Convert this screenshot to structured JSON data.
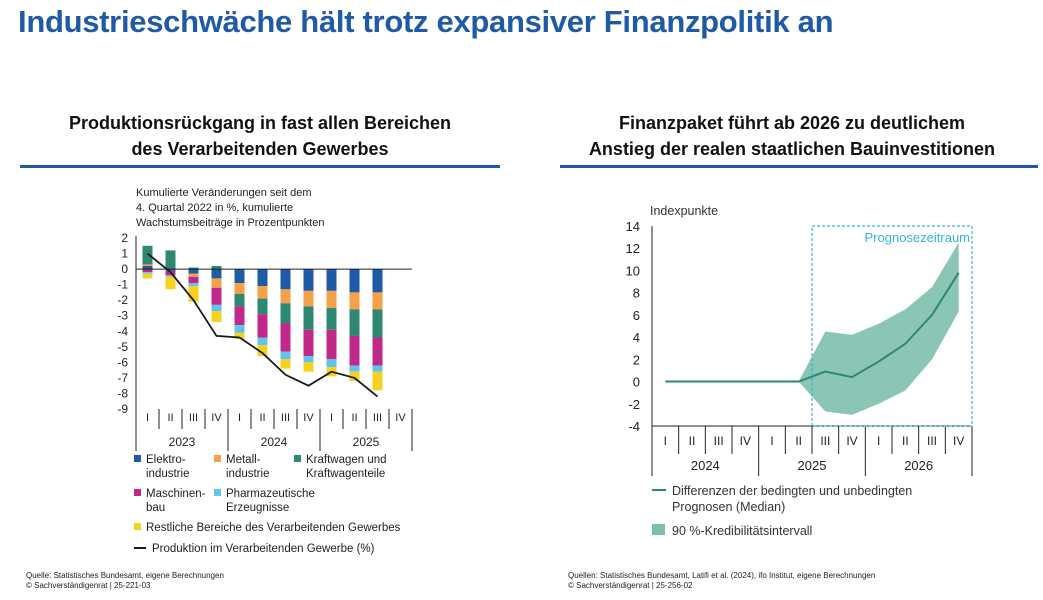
{
  "page": {
    "title": "Industrieschwäche hält trotz expansiver Finanzpolitik an"
  },
  "left": {
    "title_line1": "Produktionsrückgang in fast allen Bereichen",
    "title_line2": "des Verarbeitenden Gewerbes",
    "source_line1": "Quelle: Statistisches Bundesamt, eigene Berechnungen",
    "source_line2": "© Sachverständigenrat | 25-221-03"
  },
  "right": {
    "title_line1": "Finanzpaket führt ab 2026 zu deutlichem",
    "title_line2": "Anstieg der realen staatlichen Bauinvestitionen",
    "source_line1": "Quellen: Statistisches Bundesamt, Latifi et al. (2024), ifo Institut, eigene Berechnungen",
    "source_line2": "© Sachverständigenrat | 25-256-02"
  },
  "chart_data": [
    {
      "type": "bar",
      "stacked": true,
      "subtitle": [
        "Kumulierte Veränderungen seit dem",
        "4. Quartal 2022 in %, kumulierte",
        "Wachstumsbeiträge in Prozentpunkten"
      ],
      "ylim": [
        -9,
        2
      ],
      "yticks": [
        2,
        1,
        0,
        -1,
        -2,
        -3,
        -4,
        -5,
        -6,
        -7,
        -8,
        -9
      ],
      "quarters": [
        "I",
        "II",
        "III",
        "IV",
        "I",
        "II",
        "III",
        "IV",
        "I",
        "II",
        "III",
        "IV"
      ],
      "years": [
        "2023",
        "2024",
        "2025"
      ],
      "series": [
        {
          "name": "Elektro-industrie",
          "label": [
            "Elektro-",
            "industrie"
          ],
          "color": "#1f5aa6",
          "values": [
            0.2,
            -0.1,
            -0.3,
            -0.6,
            -0.9,
            -1.1,
            -1.3,
            -1.4,
            -1.4,
            -1.5,
            -1.5,
            null
          ]
        },
        {
          "name": "Metall-industrie",
          "label": [
            "Metall-",
            "industrie"
          ],
          "color": "#f5a14a",
          "values": [
            0.1,
            0.0,
            -0.2,
            -0.6,
            -0.7,
            -0.8,
            -0.9,
            -1.0,
            -1.1,
            -1.1,
            -1.1,
            null
          ]
        },
        {
          "name": "Kraftwagen und Kraftwagenteile",
          "label": [
            "Kraftwagen und",
            "Kraftwagenteile"
          ],
          "color": "#2e8770",
          "values": [
            1.2,
            1.2,
            0.1,
            0.2,
            -0.8,
            -1.0,
            -1.3,
            -1.5,
            -1.4,
            -1.7,
            -1.8,
            null
          ]
        },
        {
          "name": "Maschinenbau",
          "label": [
            "Maschinen-",
            "bau"
          ],
          "color": "#c0288a",
          "values": [
            -0.2,
            -0.3,
            -0.4,
            -1.1,
            -1.2,
            -1.5,
            -1.8,
            -1.7,
            -1.9,
            -1.9,
            -1.8,
            null
          ]
        },
        {
          "name": "Pharmazeutische Erzeugnisse",
          "label": [
            "Pharmazeutische",
            "Erzeugnisse"
          ],
          "color": "#62c4ee",
          "values": [
            -0.1,
            -0.1,
            -0.2,
            -0.4,
            -0.5,
            -0.5,
            -0.5,
            -0.4,
            -0.5,
            -0.4,
            -0.4,
            null
          ]
        },
        {
          "name": "Restliche Bereiche des Verarbeitenden Gewerbes",
          "label": [
            "Restliche Bereiche des Verarbeitenden Gewerbes"
          ],
          "color": "#f7d21c",
          "values": [
            -0.3,
            -0.8,
            -1.0,
            -0.7,
            -0.4,
            -0.7,
            -0.6,
            -0.6,
            -0.6,
            -0.6,
            -1.2,
            null
          ]
        }
      ],
      "line": {
        "name": "Produktion im Verarbeitenden Gewerbe (%)",
        "color": "#1a1a1a",
        "values": [
          1.0,
          -0.2,
          -2.0,
          -4.3,
          -4.4,
          -5.4,
          -6.8,
          -7.5,
          -6.6,
          -7.0,
          -8.2,
          null
        ]
      }
    },
    {
      "type": "area",
      "ylabel": "Indexpunkte",
      "ylim": [
        -4,
        14
      ],
      "yticks": [
        14,
        12,
        10,
        8,
        6,
        4,
        2,
        0,
        -2,
        -4
      ],
      "quarters": [
        "I",
        "II",
        "III",
        "IV",
        "I",
        "II",
        "III",
        "IV",
        "I",
        "II",
        "III",
        "IV"
      ],
      "years": [
        "2024",
        "2025",
        "2026"
      ],
      "forecast_label": "Prognosezeitraum",
      "forecast_start_index": 5.5,
      "median": {
        "name": "Differenzen der bedingten und unbedingten Prognosen (Median)",
        "label": [
          "Differenzen der bedingten und unbedingten",
          "Prognosen (Median)"
        ],
        "color": "#2e8770",
        "values": [
          0,
          0,
          0,
          0,
          0,
          0,
          0.9,
          0.4,
          1.8,
          3.4,
          6.0,
          9.8
        ]
      },
      "band": {
        "name": "90 %-Kredibilitätsintervall",
        "color": "#7dbfae",
        "lower": [
          0,
          0,
          0,
          0,
          0,
          0,
          -2.7,
          -3.0,
          -2.0,
          -0.8,
          2.0,
          6.3
        ],
        "upper": [
          0,
          0,
          0,
          0,
          0,
          0,
          4.5,
          4.2,
          5.2,
          6.5,
          8.5,
          12.5
        ]
      }
    }
  ]
}
